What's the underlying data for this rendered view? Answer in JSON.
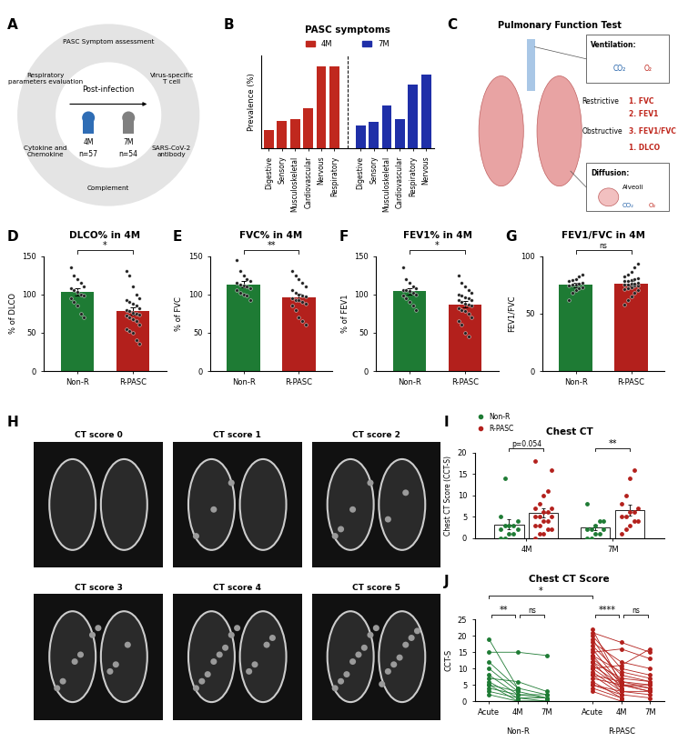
{
  "diagrams": [
    {
      "panel": "A",
      "type": "diagram",
      "assays": [
        "PASC Symptom assessment",
        "Virus-specific\nT cell",
        "SARS-CoV-2\nantibody",
        "Complement",
        "Cytokine and\nChemokine",
        "Respiratory\nparameters evaluation"
      ],
      "center": "Post-infection",
      "timepoints": [
        {
          "label": "4M",
          "n": "n=57",
          "color": "#2f6db5"
        },
        {
          "label": "7M",
          "n": "n=54",
          "color": "#808080"
        }
      ]
    },
    {
      "panel": "C",
      "type": "diagram",
      "title": "Pulmonary Function Test",
      "ventilation": {
        "heading": "Ventilation:",
        "gases": [
          "CO₂",
          "O₂"
        ],
        "groups": [
          {
            "name": "Restrictive",
            "tests": [
              "1. FVC",
              "2. FEV1"
            ]
          },
          {
            "name": "Obstructive",
            "tests": [
              "3. FEV1/FVC"
            ]
          }
        ]
      },
      "diffusion": {
        "heading": "Diffusion:",
        "site": "Alveoli",
        "gases": [
          "CO₂",
          "O₂"
        ],
        "tests": [
          "1. DLCO"
        ]
      }
    },
    {
      "panel": "H",
      "type": "images",
      "images": [
        "CT score 0",
        "CT score 1",
        "CT score 2",
        "CT score 3",
        "CT score 4",
        "CT score 5"
      ]
    }
  ],
  "chart_data": [
    {
      "panel": "B",
      "type": "bar",
      "title": "PASC symptoms",
      "y_label": "Prevalence (%)",
      "categories": [
        "Digestive",
        "Sensory",
        "Musculoskeletal",
        "Cardiovascular",
        "Nervous",
        "Respiratory",
        null,
        "Digestive",
        "Sensory",
        "Musculoskeletal",
        "Cardiovascular",
        "Respiratory",
        "Nervous"
      ],
      "series": [
        {
          "name": "4M",
          "color": "#c0281e",
          "values": [
            12,
            18,
            19,
            26,
            53,
            53,
            null,
            null,
            null,
            null,
            null,
            null,
            null
          ]
        },
        {
          "name": "7M",
          "color": "#1f2fa8",
          "values": [
            null,
            null,
            null,
            null,
            null,
            null,
            null,
            15,
            17,
            28,
            19,
            41,
            48
          ]
        }
      ],
      "ylim": [
        0,
        60
      ],
      "tick_labels": "x",
      "legend": "upper center"
    },
    {
      "panel": "D",
      "type": "bar",
      "title": "DLCO% in 4M",
      "y_label": "% of DLCO",
      "categories": [
        "Non-R",
        "R-PASC"
      ],
      "colors": [
        "#1e7b34",
        "#b3201c"
      ],
      "values": [
        103,
        78
      ],
      "error": [
        5,
        5
      ],
      "points": [
        [
          135,
          125,
          120,
          115,
          110,
          108,
          105,
          103,
          100,
          98,
          95,
          90,
          85,
          75,
          70
        ],
        [
          130,
          125,
          110,
          100,
          95,
          92,
          90,
          88,
          85,
          82,
          80,
          78,
          76,
          75,
          73,
          72,
          70,
          68,
          65,
          60,
          55,
          52,
          50,
          40,
          35
        ]
      ],
      "ylim": [
        0,
        150
      ],
      "yticks": [
        0,
        50,
        100,
        150
      ],
      "annotations": [
        {
          "text": "*",
          "between": [
            "Non-R",
            "R-PASC"
          ]
        }
      ]
    },
    {
      "panel": "E",
      "type": "bar",
      "title": "FVC% in 4M",
      "y_label": "% of FVC",
      "categories": [
        "Non-R",
        "R-PASC"
      ],
      "colors": [
        "#1e7b34",
        "#b3201c"
      ],
      "values": [
        113,
        96
      ],
      "error": [
        4,
        5
      ],
      "points": [
        [
          145,
          130,
          125,
          120,
          118,
          115,
          113,
          112,
          110,
          108,
          105,
          102,
          100,
          98,
          92
        ],
        [
          130,
          125,
          120,
          115,
          110,
          105,
          102,
          100,
          98,
          97,
          95,
          93,
          92,
          90,
          88,
          85,
          80,
          70,
          65,
          60
        ]
      ],
      "ylim": [
        0,
        150
      ],
      "yticks": [
        0,
        50,
        100,
        150
      ],
      "annotations": [
        {
          "text": "**",
          "between": [
            "Non-R",
            "R-PASC"
          ]
        }
      ]
    },
    {
      "panel": "F",
      "type": "bar",
      "title": "FEV1% in 4M",
      "y_label": "% of FEV1",
      "categories": [
        "Non-R",
        "R-PASC"
      ],
      "colors": [
        "#1e7b34",
        "#b3201c"
      ],
      "values": [
        104,
        87
      ],
      "error": [
        4,
        4
      ],
      "points": [
        [
          135,
          120,
          115,
          110,
          108,
          106,
          105,
          104,
          102,
          100,
          98,
          95,
          90,
          85,
          80
        ],
        [
          125,
          115,
          110,
          105,
          102,
          100,
          98,
          96,
          95,
          93,
          92,
          90,
          88,
          86,
          85,
          82,
          80,
          78,
          75,
          70,
          65,
          60,
          50,
          45
        ]
      ],
      "ylim": [
        0,
        150
      ],
      "yticks": [
        0,
        50,
        100,
        150
      ],
      "annotations": [
        {
          "text": "*",
          "between": [
            "Non-R",
            "R-PASC"
          ]
        }
      ]
    },
    {
      "panel": "G",
      "type": "bar",
      "title": "FEV1/FVC in 4M",
      "y_label": "FEV1/FVC",
      "categories": [
        "Non-R",
        "R-PASC"
      ],
      "colors": [
        "#1e7b34",
        "#b3201c"
      ],
      "values": [
        75,
        76
      ],
      "error": [
        2,
        2
      ],
      "points": [
        [
          62,
          68,
          70,
          72,
          73,
          74,
          75,
          75,
          76,
          77,
          78,
          79,
          80,
          82,
          84
        ],
        [
          58,
          62,
          65,
          68,
          70,
          71,
          72,
          73,
          74,
          74,
          75,
          75,
          76,
          76,
          77,
          78,
          78,
          79,
          80,
          81,
          82,
          84,
          86,
          90,
          93
        ]
      ],
      "ylim": [
        0,
        100
      ],
      "yticks": [
        0,
        50,
        100
      ],
      "annotations": [
        {
          "text": "ns",
          "between": [
            "Non-R",
            "R-PASC"
          ]
        }
      ]
    },
    {
      "panel": "I",
      "type": "bar",
      "title": "Chest CT",
      "y_label": "Chest CT Score (CCT-S)",
      "categories": [
        "4M",
        "7M"
      ],
      "series": [
        {
          "name": "Non-R",
          "color": "#1e7b34",
          "values": [
            3.2,
            2.5
          ],
          "error": [
            1.1,
            0.7
          ],
          "points": [
            [
              0,
              0,
              1,
              1,
              2,
              2,
              3,
              3,
              3,
              4,
              5,
              14
            ],
            [
              0,
              0,
              1,
              1,
              2,
              2,
              2,
              3,
              4,
              4,
              8
            ]
          ]
        },
        {
          "name": "R-PASC",
          "color": "#b3201c",
          "values": [
            5.9,
            6.5
          ],
          "error": [
            1.0,
            1.2
          ],
          "points": [
            [
              0,
              1,
              1,
              2,
              2,
              3,
              3,
              4,
              4,
              5,
              5,
              5,
              6,
              6,
              7,
              7,
              8,
              10,
              11,
              16,
              18
            ],
            [
              1,
              2,
              3,
              4,
              4,
              5,
              5,
              6,
              6,
              7,
              8,
              10,
              14,
              16
            ]
          ]
        }
      ],
      "ylim": [
        0,
        20
      ],
      "yticks": [
        0,
        5,
        10,
        15,
        20
      ],
      "legend": "upper left",
      "annotations": [
        {
          "text": "p=0.054",
          "category": "4M"
        },
        {
          "text": "**",
          "category": "7M"
        }
      ]
    },
    {
      "panel": "J",
      "type": "line",
      "title": "Chest CT Score",
      "y_label": "CCT-S",
      "ylim": [
        0,
        25
      ],
      "yticks": [
        0,
        5,
        10,
        15,
        20,
        25
      ],
      "marker": "o",
      "groups": [
        {
          "name": "Non-R",
          "color": "#1e7b34",
          "categories": [
            "Acute",
            "4M",
            "7M"
          ],
          "subjects": [
            [
              19,
              4,
              2
            ],
            [
              15,
              15,
              14
            ],
            [
              12,
              4,
              null
            ],
            [
              10,
              3,
              1
            ],
            [
              8,
              2,
              2
            ],
            [
              7,
              6,
              3
            ],
            [
              6,
              1,
              0
            ],
            [
              5,
              3,
              null
            ],
            [
              5,
              0,
              0
            ],
            [
              4,
              2,
              1
            ],
            [
              3,
              1,
              1
            ],
            [
              2,
              0,
              0
            ]
          ]
        },
        {
          "name": "R-PASC",
          "color": "#b3201c",
          "categories": [
            "Acute",
            "4M",
            "7M"
          ],
          "subjects": [
            [
              22,
              5,
              3
            ],
            [
              21,
              18,
              15
            ],
            [
              20,
              10,
              8
            ],
            [
              19,
              6,
              null
            ],
            [
              18,
              12,
              10
            ],
            [
              17,
              8,
              6
            ],
            [
              16,
              5,
              5
            ],
            [
              15,
              16,
              13
            ],
            [
              14,
              4,
              null
            ],
            [
              14,
              9,
              7
            ],
            [
              13,
              6,
              4
            ],
            [
              12,
              3,
              null
            ],
            [
              12,
              7,
              6
            ],
            [
              11,
              5,
              3
            ],
            [
              10,
              4,
              null
            ],
            [
              10,
              11,
              16
            ],
            [
              9,
              3,
              2
            ],
            [
              8,
              6,
              5
            ],
            [
              8,
              2,
              null
            ],
            [
              7,
              5,
              4
            ],
            [
              6,
              1,
              null
            ],
            [
              5,
              3,
              3
            ],
            [
              5,
              2,
              1
            ],
            [
              4,
              1,
              null
            ],
            [
              3,
              0,
              null
            ]
          ]
        }
      ],
      "annotations": [
        {
          "text": "**",
          "between": [
            {
              "group": "Non-R",
              "category": "Acute"
            },
            {
              "group": "Non-R",
              "category": "4M"
            }
          ]
        },
        {
          "text": "ns",
          "between": [
            {
              "group": "Non-R",
              "category": "4M"
            },
            {
              "group": "Non-R",
              "category": "7M"
            }
          ]
        },
        {
          "text": "*",
          "between": [
            {
              "group": "Non-R",
              "category": "Acute"
            },
            {
              "group": "R-PASC",
              "category": "Acute"
            }
          ]
        },
        {
          "text": "****",
          "between": [
            {
              "group": "R-PASC",
              "category": "Acute"
            },
            {
              "group": "R-PASC",
              "category": "4M"
            }
          ]
        },
        {
          "text": "ns",
          "between": [
            {
              "group": "R-PASC",
              "category": "4M"
            },
            {
              "group": "R-PASC",
              "category": "7M"
            }
          ]
        }
      ]
    }
  ]
}
